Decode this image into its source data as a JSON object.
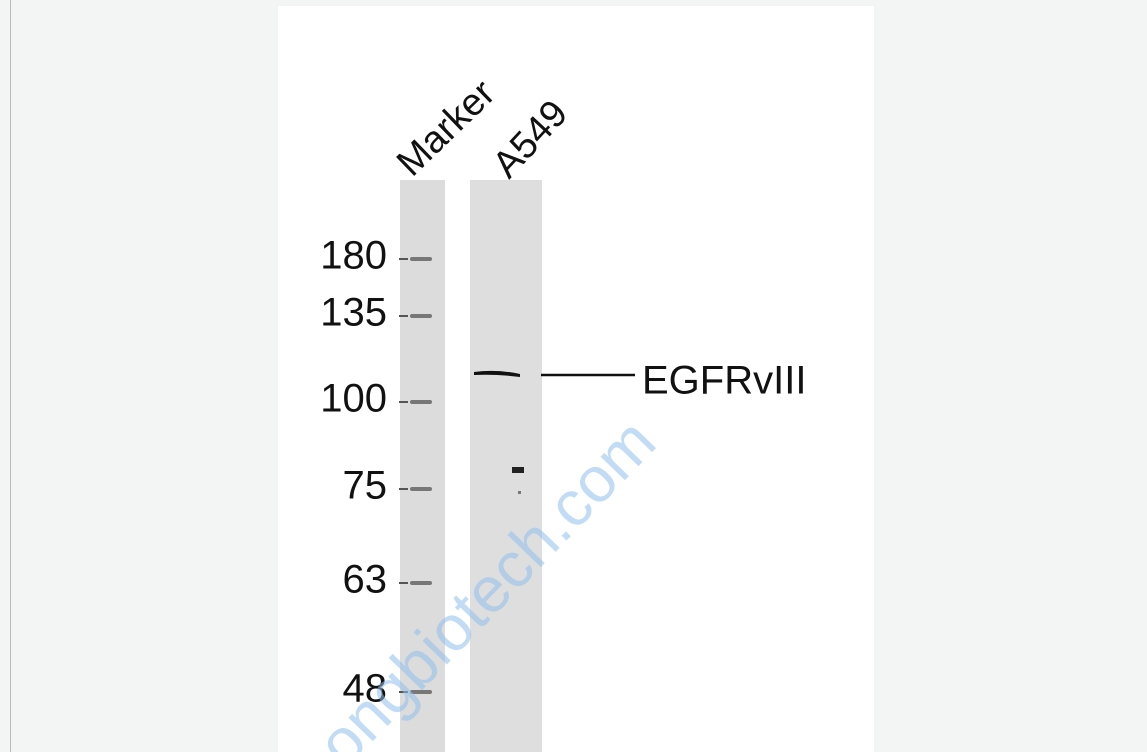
{
  "lanes": [
    {
      "label": "Marker"
    },
    {
      "label": "A549"
    }
  ],
  "markers": [
    "180",
    "135",
    "100",
    "75",
    "63",
    "48"
  ],
  "band_label": "EGFRvIII",
  "watermark": "ongbiotech.com"
}
